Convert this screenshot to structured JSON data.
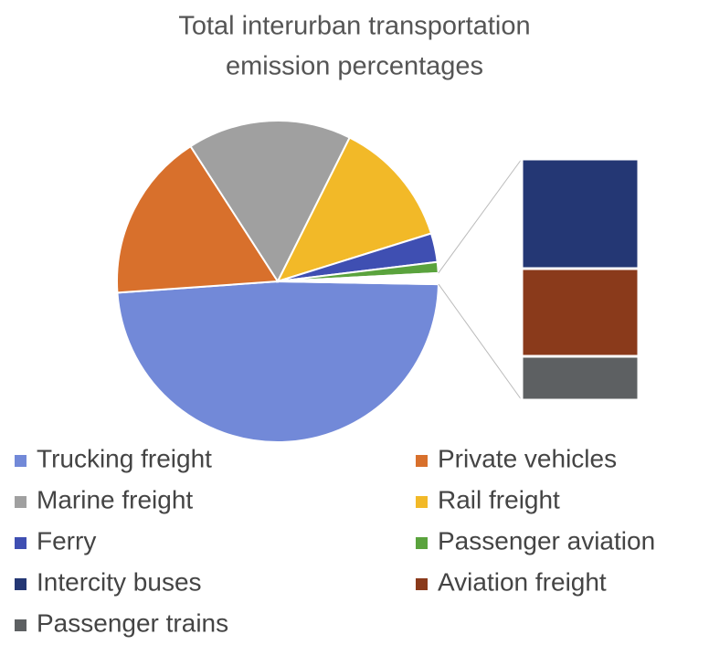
{
  "chart_data": {
    "type": "pie_of_bar",
    "title": [
      "Total interurban transportation",
      "emission percentages"
    ],
    "categories": [
      "Trucking freight",
      "Private vehicles",
      "Marine freight",
      "Rail freight",
      "Ferry",
      "Passenger  aviation",
      "Intercity buses",
      "Aviation freight",
      "Passenger trains"
    ],
    "values": [
      48.6,
      17,
      16.5,
      12.8,
      2.9,
      1.1,
      0.5,
      0.4,
      0.2
    ],
    "colors": [
      "#7289d8",
      "#d8702c",
      "#a0a0a0",
      "#f2b928",
      "#3f4fb2",
      "#5aa33d",
      "#243774",
      "#8a3a1b",
      "#5d6062"
    ],
    "second_plot_count": 3
  }
}
